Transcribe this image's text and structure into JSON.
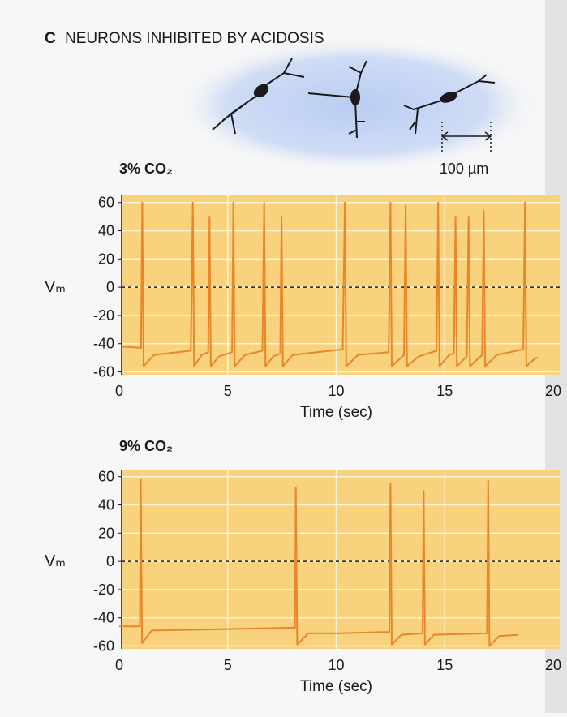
{
  "header": {
    "label": "C",
    "title": "NEURONS INHIBITED BY ACIDOSIS"
  },
  "scale_bar": "100 µm",
  "chart_data": [
    {
      "type": "line",
      "title": "3% CO₂",
      "y_label": "Vₘ",
      "x_label": "Time (sec)",
      "x": [
        0.1,
        1.0,
        1.06,
        1.12,
        1.6,
        3.3,
        3.39,
        3.45,
        3.8,
        4.1,
        4.16,
        4.22,
        4.6,
        5.2,
        5.26,
        5.32,
        5.8,
        6.6,
        6.68,
        6.74,
        7.1,
        7.42,
        7.48,
        7.54,
        8.0,
        10.3,
        10.4,
        10.46,
        11.0,
        12.42,
        12.5,
        12.56,
        13.12,
        13.2,
        13.26,
        13.8,
        14.62,
        14.7,
        14.76,
        15.2,
        15.42,
        15.5,
        15.56,
        16.02,
        16.1,
        16.16,
        16.72,
        16.8,
        16.86,
        17.4,
        18.62,
        18.7,
        18.76,
        19.2,
        19.3
      ],
      "values": [
        -42,
        -43,
        60,
        -56,
        -48,
        -45,
        60,
        -56,
        -48,
        -46,
        50,
        -56,
        -49,
        -46,
        60,
        -56,
        -48,
        -45,
        60,
        -56,
        -49,
        -47,
        50,
        -56,
        -48,
        -44,
        60,
        -56,
        -48,
        -46,
        60,
        -56,
        -48,
        58,
        -56,
        -49,
        -45,
        60,
        -56,
        -48,
        -47,
        50,
        -56,
        -49,
        50,
        -56,
        -48,
        54,
        -56,
        -48,
        -44,
        60,
        -56,
        -50,
        -50
      ],
      "color": "#e8862a",
      "xlim": [
        0,
        20
      ],
      "ylim": [
        -62,
        65
      ],
      "xticks": [
        0,
        5,
        10,
        15,
        20
      ],
      "yticks": [
        -60,
        -40,
        -20,
        0,
        20,
        40,
        60
      ],
      "grid": true,
      "zero_line": true
    },
    {
      "type": "line",
      "title": "9% CO₂",
      "y_label": "Vₘ",
      "x_label": "Time (sec)",
      "x": [
        0.0,
        0.95,
        0.99,
        1.05,
        1.5,
        5.0,
        8.1,
        8.14,
        8.2,
        8.7,
        10.0,
        12.45,
        12.5,
        12.56,
        13.0,
        13.98,
        14.03,
        14.09,
        14.5,
        16.95,
        17.0,
        17.06,
        17.5,
        18.4
      ],
      "values": [
        -46,
        -46,
        58,
        -58,
        -49,
        -48,
        -47,
        52,
        -59,
        -51,
        -51,
        -50,
        55,
        -59,
        -52,
        -51,
        50,
        -59,
        -52,
        -51,
        57,
        -60,
        -53,
        -52
      ],
      "color": "#e8862a",
      "xlim": [
        0,
        20
      ],
      "ylim": [
        -62,
        65
      ],
      "xticks": [
        0,
        5,
        10,
        15,
        20
      ],
      "yticks": [
        -60,
        -40,
        -20,
        0,
        20,
        40,
        60
      ],
      "grid": true,
      "zero_line": true
    }
  ]
}
